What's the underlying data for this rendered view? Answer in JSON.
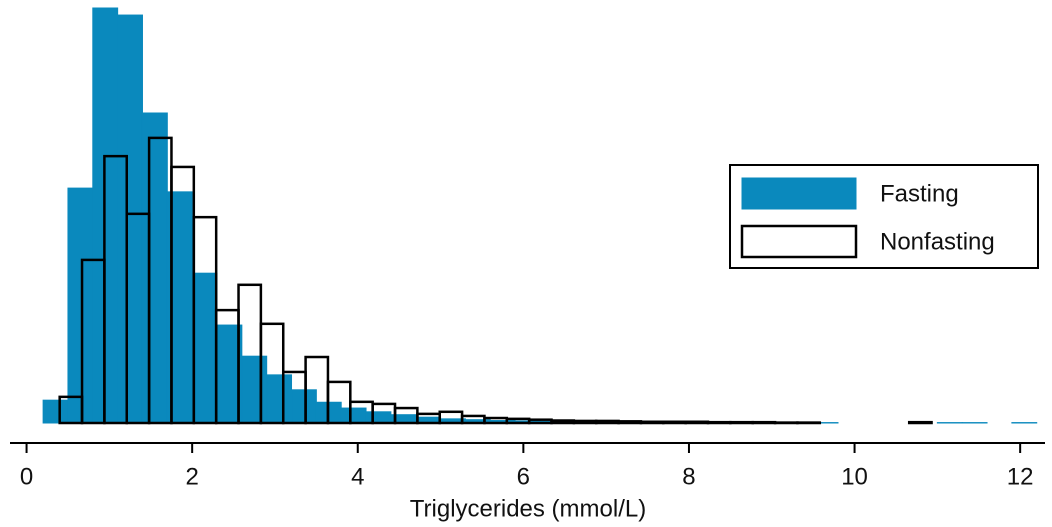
{
  "chart_data": {
    "type": "histogram",
    "x_label": "Triglycerides (mmol/L)",
    "xlim": [
      -0.2,
      12.3
    ],
    "xticks": [
      0,
      2,
      4,
      6,
      8,
      10,
      12
    ],
    "ylim": [
      0,
      100
    ],
    "legend": "right",
    "series": [
      {
        "name": "Fasting",
        "color": "#0a89bd",
        "fill": true,
        "bins": [
          0.2,
          0.5,
          0.8,
          1.1,
          1.4,
          1.7,
          2.0,
          2.3,
          2.6,
          2.9,
          3.2,
          3.5,
          3.8,
          4.1,
          4.4,
          4.7,
          5.0,
          5.3,
          5.6,
          5.9,
          6.2,
          6.5,
          6.8,
          7.1,
          7.4,
          7.7,
          8.0,
          8.3,
          8.6,
          8.9,
          9.2,
          9.5,
          9.8,
          10.1,
          10.4,
          10.7,
          11.0,
          11.3,
          11.6,
          11.9,
          12.2
        ],
        "values": [
          5.5,
          56.6,
          100,
          98.3,
          74.7,
          55.7,
          36.1,
          23.6,
          16.1,
          11.6,
          8,
          5,
          3.6,
          2.7,
          2,
          1.4,
          1.0,
          0.8,
          0.6,
          0.5,
          0.4,
          0.3,
          0.3,
          0.2,
          0.2,
          0.2,
          0.1,
          0.1,
          0.1,
          0.1,
          0.1,
          0.1,
          0,
          0,
          0,
          0,
          0.1,
          0.1,
          0,
          0.1
        ]
      },
      {
        "name": "Nonfasting",
        "color": "#000000",
        "fill": false,
        "bins": [
          0.4,
          0.67,
          0.94,
          1.21,
          1.48,
          1.75,
          2.02,
          2.29,
          2.56,
          2.83,
          3.1,
          3.37,
          3.64,
          3.91,
          4.18,
          4.45,
          4.72,
          4.99,
          5.26,
          5.53,
          5.8,
          6.07,
          6.34,
          6.61,
          6.88,
          7.15,
          7.42,
          7.69,
          7.96,
          8.23,
          8.5,
          8.77,
          9.04,
          9.31,
          9.58,
          9.85,
          10.12,
          10.39,
          10.66,
          10.93
        ],
        "values": [
          6.3,
          39.3,
          64.3,
          50.4,
          68.7,
          61.7,
          49.6,
          27.2,
          33.3,
          23.9,
          12.3,
          15.9,
          9.9,
          5.1,
          4.6,
          3.6,
          2.2,
          2.7,
          1.7,
          1.2,
          1.0,
          0.8,
          0.6,
          0.5,
          0.5,
          0.4,
          0.3,
          0.3,
          0.3,
          0.2,
          0.2,
          0.2,
          0.1,
          0.1,
          0,
          0,
          0,
          0,
          0.2
        ]
      }
    ]
  }
}
